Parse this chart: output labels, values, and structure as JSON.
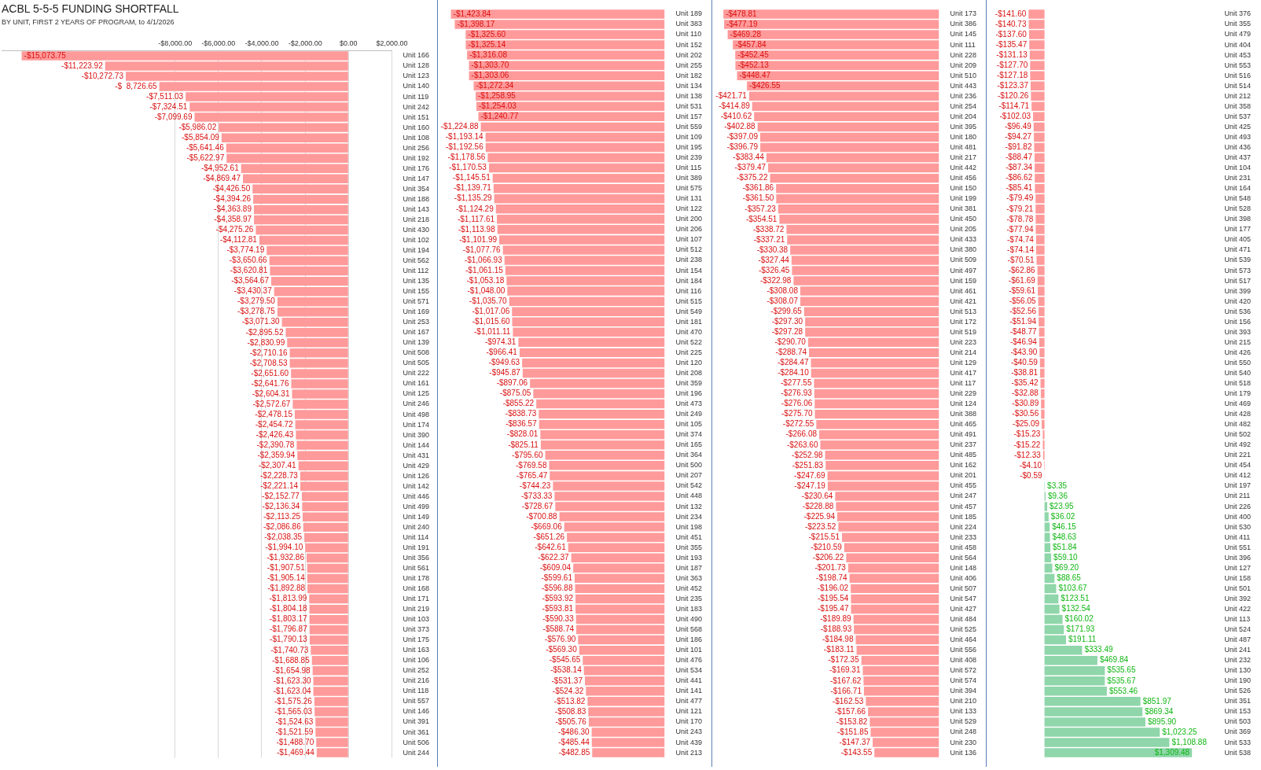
{
  "chart_data": [
    {
      "type": "bar",
      "orientation": "horizontal",
      "title": "ACBL 5-5-5 FUNDING SHORTFALL",
      "subtitle": "BY UNIT, FIRST 2 YEARS OF PROGRAM, to 4/1/2026",
      "xlim": [
        -16000,
        2000
      ],
      "xticks": [
        {
          "value": -8000,
          "label": "-$8,000.00"
        },
        {
          "value": -6000,
          "label": "-$6,000.00"
        },
        {
          "value": -4000,
          "label": "-$4,000.00"
        },
        {
          "value": -2000,
          "label": "-$2,000.00"
        },
        {
          "value": 0,
          "label": "$0.00"
        },
        {
          "value": 2000,
          "label": "$2,000.00"
        }
      ],
      "grid": "x",
      "color": "#ff9a9a",
      "categories": [
        "Unit 166",
        "Unit 128",
        "Unit 123",
        "Unit 140",
        "Unit 119",
        "Unit 242",
        "Unit 151",
        "Unit 160",
        "Unit 108",
        "Unit 256",
        "Unit 192",
        "Unit 176",
        "Unit 147",
        "Unit 354",
        "Unit 188",
        "Unit 143",
        "Unit 218",
        "Unit 430",
        "Unit 102",
        "Unit 194",
        "Unit 562",
        "Unit 112",
        "Unit 135",
        "Unit 155",
        "Unit 571",
        "Unit 169",
        "Unit 253",
        "Unit 167",
        "Unit 139",
        "Unit 508",
        "Unit 505",
        "Unit 222",
        "Unit 161",
        "Unit 125",
        "Unit 246",
        "Unit 498",
        "Unit 174",
        "Unit 390",
        "Unit 144",
        "Unit 431",
        "Unit 429",
        "Unit 126",
        "Unit 142",
        "Unit 446",
        "Unit 499",
        "Unit 149",
        "Unit 240",
        "Unit 114",
        "Unit 191",
        "Unit 356",
        "Unit 561",
        "Unit 178",
        "Unit 168",
        "Unit 171",
        "Unit 219",
        "Unit 103",
        "Unit 373",
        "Unit 175",
        "Unit 163",
        "Unit 106",
        "Unit 252",
        "Unit 216",
        "Unit 118",
        "Unit 557",
        "Unit 146",
        "Unit 391",
        "Unit 361",
        "Unit 506",
        "Unit 244"
      ],
      "values": [
        -15073.75,
        -11223.92,
        -10272.73,
        -8726.65,
        -7511.03,
        -7324.51,
        -7099.69,
        -5986.02,
        -5854.09,
        -5641.46,
        -5622.97,
        -4952.61,
        -4869.47,
        -4426.5,
        -4394.26,
        -4363.89,
        -4358.97,
        -4275.26,
        -4112.81,
        -3774.19,
        -3650.66,
        -3620.81,
        -3564.67,
        -3430.37,
        -3279.5,
        -3278.75,
        -3071.3,
        -2895.52,
        -2830.99,
        -2710.16,
        -2708.53,
        -2651.6,
        -2641.76,
        -2604.31,
        -2572.67,
        -2478.15,
        -2454.72,
        -2426.43,
        -2390.78,
        -2359.94,
        -2307.41,
        -2228.73,
        -2221.14,
        -2152.77,
        -2136.34,
        -2113.25,
        -2086.86,
        -2038.35,
        -1994.1,
        -1932.86,
        -1907.51,
        -1905.14,
        -1892.88,
        -1813.99,
        -1804.18,
        -1803.17,
        -1796.87,
        -1790.13,
        -1740.73,
        -1688.85,
        -1654.98,
        -1623.3,
        -1623.04,
        -1575.26,
        -1565.03,
        -1524.63,
        -1521.59,
        -1488.7,
        -1469.44
      ],
      "value_labels": [
        "-$15,073.75",
        "-$11,223.92",
        "-$10,272.73",
        "-$  8,726.65",
        "-$7,511.03",
        "-$7,324.51",
        "-$7,099.69",
        "-$5,986.02",
        "-$5,854.09",
        "-$5,641.46",
        "-$5,622.97",
        "-$4,952.61",
        "-$4,869.47",
        "-$4,426.50",
        "-$4,394.26",
        "-$4,363.89",
        "-$4,358.97",
        "-$4,275.26",
        "-$4,112.81",
        "-$3,774.19",
        "-$3,650.66",
        "-$3,620.81",
        "-$3,564.67",
        "-$3,430.37",
        "-$3,279.50",
        "-$3,278.75",
        "-$3,071.30",
        "-$2,895.52",
        "-$2,830.99",
        "-$2,710.16",
        "-$2,708.53",
        "-$2,651.60",
        "-$2,641.76",
        "-$2,604.31",
        "-$2,572.67",
        "-$2,478.15",
        "-$2,454.72",
        "-$2,426.43",
        "-$2,390.78",
        "-$2,359.94",
        "-$2,307.41",
        "-$2,228.73",
        "-$2,221.14",
        "-$2,152.77",
        "-$2,136.34",
        "-$2,113.25",
        "-$2,086.86",
        "-$2,038.35",
        "-$1,994.10",
        "-$1,932.86",
        "-$1,907.51",
        "-$1,905.14",
        "-$1,892.88",
        "-$1,813.99",
        "-$1,804.18",
        "-$1,803.17",
        "-$1,796.87",
        "-$1,790.13",
        "-$1,740.73",
        "-$1,688.85",
        "-$1,654.98",
        "-$1,623.30",
        "-$1,623.04",
        "-$1,575.26",
        "-$1,565.03",
        "-$1,524.63",
        "-$1,521.59",
        "-$1,488.70",
        "-$1,469.44"
      ]
    },
    {
      "type": "bar",
      "orientation": "horizontal",
      "tick_labels": "y",
      "color": "#ff9a9a",
      "categories": [
        "Unit 189",
        "Unit 383",
        "Unit 110",
        "Unit 152",
        "Unit 202",
        "Unit 255",
        "Unit 182",
        "Unit 134",
        "Unit 138",
        "Unit 531",
        "Unit 157",
        "Unit 559",
        "Unit 109",
        "Unit 195",
        "Unit 239",
        "Unit 115",
        "Unit 389",
        "Unit 575",
        "Unit 131",
        "Unit 122",
        "Unit 200",
        "Unit 206",
        "Unit 107",
        "Unit 512",
        "Unit 238",
        "Unit 154",
        "Unit 184",
        "Unit 116",
        "Unit 515",
        "Unit 549",
        "Unit 181",
        "Unit 470",
        "Unit 522",
        "Unit 225",
        "Unit 120",
        "Unit 208",
        "Unit 359",
        "Unit 196",
        "Unit 473",
        "Unit 249",
        "Unit 105",
        "Unit 374",
        "Unit 165",
        "Unit 364",
        "Unit 500",
        "Unit 207",
        "Unit 542",
        "Unit 448",
        "Unit 132",
        "Unit 234",
        "Unit 198",
        "Unit 451",
        "Unit 355",
        "Unit 193",
        "Unit 187",
        "Unit 363",
        "Unit 452",
        "Unit 235",
        "Unit 183",
        "Unit 490",
        "Unit 568",
        "Unit 186",
        "Unit 101",
        "Unit 476",
        "Unit 534",
        "Unit 441",
        "Unit 141",
        "Unit 477",
        "Unit 121",
        "Unit 170",
        "Unit 243",
        "Unit 439",
        "Unit 213"
      ],
      "values": [
        -1423.84,
        -1398.17,
        -1325.6,
        -1325.14,
        -1316.08,
        -1303.7,
        -1303.06,
        -1272.34,
        -1258.95,
        -1254.03,
        -1240.77,
        -1224.88,
        -1193.14,
        -1192.56,
        -1178.56,
        -1170.53,
        -1145.51,
        -1139.71,
        -1135.29,
        -1124.29,
        -1117.61,
        -1113.98,
        -1101.99,
        -1077.76,
        -1066.93,
        -1061.15,
        -1053.18,
        -1048.0,
        -1035.7,
        -1017.06,
        -1015.6,
        -1011.11,
        -974.31,
        -966.41,
        -949.63,
        -945.87,
        -897.06,
        -875.05,
        -855.22,
        -838.73,
        -836.57,
        -828.01,
        -825.11,
        -795.6,
        -769.58,
        -765.47,
        -744.23,
        -733.33,
        -728.67,
        -700.88,
        -669.06,
        -651.26,
        -642.61,
        -622.37,
        -609.04,
        -599.61,
        -596.88,
        -593.92,
        -593.81,
        -590.33,
        -588.74,
        -576.9,
        -569.3,
        -545.65,
        -538.14,
        -531.37,
        -524.32,
        -513.82,
        -508.83,
        -505.76,
        -486.3,
        -485.44,
        -482.85
      ],
      "value_labels": [
        "-$1,423.84",
        "-$1,398.17",
        "-$1,325.60",
        "-$1,325.14",
        "-$1,316.08",
        "-$1,303.70",
        "-$1,303.06",
        "-$1,272.34",
        "-$1,258.95",
        "-$1,254.03",
        "-$1,240.77",
        "-$1,224.88",
        "-$1,193.14",
        "-$1,192.56",
        "-$1,178.56",
        "-$1,170.53",
        "-$1,145.51",
        "-$1,139.71",
        "-$1,135.29",
        "-$1,124.29",
        "-$1,117.61",
        "-$1,113.98",
        "-$1,101.99",
        "-$1,077.76",
        "-$1,066.93",
        "-$1,061.15",
        "-$1,053.18",
        "-$1,048.00",
        "-$1,035.70",
        "-$1,017.06",
        "-$1,015.60",
        "-$1,011.11",
        "-$974.31",
        "-$966.41",
        "-$949.63",
        "-$945.87",
        "-$897.06",
        "-$875.05",
        "-$855.22",
        "-$838.73",
        "-$836.57",
        "-$828.01",
        "-$825.11",
        "-$795.60",
        "-$769.58",
        "-$765.47",
        "-$744.23",
        "-$733.33",
        "-$728.67",
        "-$700.88",
        "-$669.06",
        "-$651.26",
        "-$642.61",
        "-$622.37",
        "-$609.04",
        "-$599.61",
        "-$596.88",
        "-$593.92",
        "-$593.81",
        "-$590.33",
        "-$588.74",
        "-$576.90",
        "-$569.30",
        "-$545.65",
        "-$538.14",
        "-$531.37",
        "-$524.32",
        "-$513.82",
        "-$508.83",
        "-$505.76",
        "-$486.30",
        "-$485.44",
        "-$482.85"
      ]
    },
    {
      "type": "bar",
      "orientation": "horizontal",
      "tick_labels": "y",
      "color": "#ff9a9a",
      "categories": [
        "Unit 173",
        "Unit 386",
        "Unit 145",
        "Unit 111",
        "Unit 228",
        "Unit 209",
        "Unit 510",
        "Unit 443",
        "Unit 236",
        "Unit 254",
        "Unit 204",
        "Unit 395",
        "Unit 180",
        "Unit 481",
        "Unit 217",
        "Unit 442",
        "Unit 456",
        "Unit 150",
        "Unit 199",
        "Unit 381",
        "Unit 450",
        "Unit 205",
        "Unit 433",
        "Unit 380",
        "Unit 509",
        "Unit 497",
        "Unit 159",
        "Unit 461",
        "Unit 421",
        "Unit 513",
        "Unit 172",
        "Unit 519",
        "Unit 223",
        "Unit 214",
        "Unit 129",
        "Unit 417",
        "Unit 117",
        "Unit 229",
        "Unit 124",
        "Unit 388",
        "Unit 465",
        "Unit 491",
        "Unit 237",
        "Unit 485",
        "Unit 162",
        "Unit 201",
        "Unit 455",
        "Unit 247",
        "Unit 457",
        "Unit 185",
        "Unit 224",
        "Unit 233",
        "Unit 458",
        "Unit 564",
        "Unit 148",
        "Unit 406",
        "Unit 507",
        "Unit 547",
        "Unit 427",
        "Unit 484",
        "Unit 525",
        "Unit 464",
        "Unit 556",
        "Unit 408",
        "Unit 572",
        "Unit 574",
        "Unit 394",
        "Unit 210",
        "Unit 133",
        "Unit 529",
        "Unit 248",
        "Unit 230",
        "Unit 136"
      ],
      "values": [
        -478.81,
        -477.19,
        -469.28,
        -457.84,
        -452.45,
        -452.13,
        -448.47,
        -426.55,
        -421.71,
        -414.89,
        -410.62,
        -402.88,
        -397.09,
        -396.79,
        -383.44,
        -379.47,
        -375.22,
        -361.86,
        -361.5,
        -357.23,
        -354.51,
        -338.72,
        -337.21,
        -330.38,
        -327.44,
        -326.45,
        -322.98,
        -308.08,
        -308.07,
        -299.65,
        -297.3,
        -297.28,
        -290.7,
        -288.74,
        -284.47,
        -284.1,
        -277.55,
        -276.93,
        -276.06,
        -275.7,
        -272.55,
        -266.08,
        -263.6,
        -252.98,
        -251.83,
        -247.69,
        -247.19,
        -230.64,
        -228.88,
        -225.94,
        -223.52,
        -215.51,
        -210.59,
        -206.22,
        -201.73,
        -198.74,
        -196.02,
        -195.54,
        -195.47,
        -189.89,
        -188.93,
        -184.98,
        -183.11,
        -172.35,
        -169.31,
        -167.62,
        -166.71,
        -162.53,
        -157.66,
        -153.82,
        -151.85,
        -147.37,
        -143.55
      ],
      "value_labels": [
        "-$478.81",
        "-$477.19",
        "-$469.28",
        "-$457.84",
        "-$452.45",
        "-$452.13",
        "-$448.47",
        "-$426.55",
        "-$421.71",
        "-$414.89",
        "-$410.62",
        "-$402.88",
        "-$397.09",
        "-$396.79",
        "-$383.44",
        "-$379.47",
        "-$375.22",
        "-$361.86",
        "-$361.50",
        "-$357.23",
        "-$354.51",
        "-$338.72",
        "-$337.21",
        "-$330.38",
        "-$327.44",
        "-$326.45",
        "-$322.98",
        "-$308.08",
        "-$308.07",
        "-$299.65",
        "-$297.30",
        "-$297.28",
        "-$290.70",
        "-$288.74",
        "-$284.47",
        "-$284.10",
        "-$277.55",
        "-$276.93",
        "-$276.06",
        "-$275.70",
        "-$272.55",
        "-$266.08",
        "-$263.60",
        "-$252.98",
        "-$251.83",
        "-$247.69",
        "-$247.19",
        "-$230.64",
        "-$228.88",
        "-$225.94",
        "-$223.52",
        "-$215.51",
        "-$210.59",
        "-$206.22",
        "-$201.73",
        "-$198.74",
        "-$196.02",
        "-$195.54",
        "-$195.47",
        "-$189.89",
        "-$188.93",
        "-$184.98",
        "-$183.11",
        "-$172.35",
        "-$169.31",
        "-$167.62",
        "-$166.71",
        "-$162.53",
        "-$157.66",
        "-$153.82",
        "-$151.85",
        "-$147.37",
        "-$143.55"
      ]
    },
    {
      "type": "bar",
      "orientation": "horizontal",
      "tick_labels": "y",
      "categories": [
        "Unit 376",
        "Unit 355",
        "Unit 479",
        "Unit 404",
        "Unit 453",
        "Unit 553",
        "Unit 516",
        "Unit 514",
        "Unit 212",
        "Unit 358",
        "Unit 537",
        "Unit 425",
        "Unit 493",
        "Unit 436",
        "Unit 437",
        "Unit 104",
        "Unit 231",
        "Unit 164",
        "Unit 548",
        "Unit 528",
        "Unit 398",
        "Unit 177",
        "Unit 405",
        "Unit 471",
        "Unit 539",
        "Unit 573",
        "Unit 517",
        "Unit 399",
        "Unit 420",
        "Unit 536",
        "Unit 156",
        "Unit 393",
        "Unit 215",
        "Unit 426",
        "Unit 550",
        "Unit 540",
        "Unit 518",
        "Unit 179",
        "Unit 469",
        "Unit 428",
        "Unit 482",
        "Unit 502",
        "Unit 492",
        "Unit 221",
        "Unit 454",
        "Unit 412",
        "Unit 197",
        "Unit 211",
        "Unit 226",
        "Unit 400",
        "Unit 530",
        "Unit 411",
        "Unit 551",
        "Unit 396",
        "Unit 127",
        "Unit 158",
        "Unit 501",
        "Unit 392",
        "Unit 422",
        "Unit 113",
        "Unit 524",
        "Unit 487",
        "Unit 241",
        "Unit 232",
        "Unit 130",
        "Unit 190",
        "Unit 526",
        "Unit 351",
        "Unit 153",
        "Unit 503",
        "Unit 369",
        "Unit 533",
        "Unit 538"
      ],
      "values": [
        -141.6,
        -140.73,
        -137.6,
        -135.47,
        -131.13,
        -127.7,
        -127.18,
        -123.37,
        -120.26,
        -114.71,
        -102.03,
        -96.49,
        -94.27,
        -91.82,
        -88.47,
        -87.34,
        -86.62,
        -85.41,
        -79.49,
        -79.21,
        -78.78,
        -77.94,
        -74.74,
        -74.14,
        -70.51,
        -62.86,
        -61.69,
        -59.61,
        -56.05,
        -52.56,
        -51.94,
        -48.77,
        -46.94,
        -43.9,
        -40.59,
        -38.81,
        -35.42,
        -32.88,
        -30.89,
        -30.56,
        -25.09,
        -15.23,
        -15.22,
        -12.33,
        -4.1,
        -0.59,
        3.35,
        9.36,
        23.95,
        36.02,
        46.15,
        48.63,
        51.84,
        59.1,
        69.2,
        88.65,
        103.67,
        123.51,
        132.54,
        160.02,
        171.93,
        191.11,
        333.49,
        469.84,
        535.65,
        535.67,
        553.46,
        851.97,
        869.34,
        895.9,
        1023.25,
        1108.88,
        1309.48
      ],
      "value_labels": [
        "-$141.60",
        "-$140.73",
        "-$137.60",
        "-$135.47",
        "-$131.13",
        "-$127.70",
        "-$127.18",
        "-$123.37",
        "-$120.26",
        "-$114.71",
        "-$102.03",
        "-$96.49",
        "-$94.27",
        "-$91.82",
        "-$88.47",
        "-$87.34",
        "-$86.62",
        "-$85.41",
        "-$79.49",
        "-$79.21",
        "-$78.78",
        "-$77.94",
        "-$74.74",
        "-$74.14",
        "-$70.51",
        "-$62.86",
        "-$61.69",
        "-$59.61",
        "-$56.05",
        "-$52.56",
        "-$51.94",
        "-$48.77",
        "-$46.94",
        "-$43.90",
        "-$40.59",
        "-$38.81",
        "-$35.42",
        "-$32.88",
        "-$30.89",
        "-$30.56",
        "-$25.09",
        "-$15.23",
        "-$15.22",
        "-$12.33",
        "-$4.10",
        "-$0.59",
        "$3.35",
        "$9.36",
        "$23.95",
        "$36.02",
        "$46.15",
        "$48.63",
        "$51.84",
        "$59.10",
        "$69.20",
        "$88.65",
        "$103.67",
        "$123.51",
        "$132.54",
        "$160.02",
        "$171.93",
        "$191.11",
        "$333.49",
        "$469.84",
        "$535.65",
        "$535.67",
        "$553.46",
        "$851.97",
        "$869.34",
        "$895.90",
        "$1,023.25",
        "$1,108.88",
        "$1,309.48"
      ],
      "colors": [
        "#ff9a9a",
        "#ff9a9a",
        "#ff9a9a",
        "#ff9a9a",
        "#ff9a9a",
        "#ff9a9a",
        "#ff9a9a",
        "#ff9a9a",
        "#ff9a9a",
        "#ff9a9a",
        "#ff9a9a",
        "#ff9a9a",
        "#ff9a9a",
        "#ff9a9a",
        "#ff9a9a",
        "#ff9a9a",
        "#ff9a9a",
        "#ff9a9a",
        "#ff9a9a",
        "#ff9a9a",
        "#ff9a9a",
        "#ff9a9a",
        "#ff9a9a",
        "#ff9a9a",
        "#ff9a9a",
        "#ff9a9a",
        "#ff9a9a",
        "#ff9a9a",
        "#ff9a9a",
        "#ff9a9a",
        "#ff9a9a",
        "#ff9a9a",
        "#ff9a9a",
        "#ff9a9a",
        "#ff9a9a",
        "#ff9a9a",
        "#ff9a9a",
        "#ff9a9a",
        "#ff9a9a",
        "#ff9a9a",
        "#ff9a9a",
        "#ff9a9a",
        "#ff9a9a",
        "#ff9a9a",
        "#ff9a9a",
        "#ff9a9a",
        "#8fd6aa",
        "#8fd6aa",
        "#8fd6aa",
        "#8fd6aa",
        "#8fd6aa",
        "#8fd6aa",
        "#8fd6aa",
        "#8fd6aa",
        "#8fd6aa",
        "#8fd6aa",
        "#8fd6aa",
        "#8fd6aa",
        "#8fd6aa",
        "#8fd6aa",
        "#8fd6aa",
        "#8fd6aa",
        "#8fd6aa",
        "#8fd6aa",
        "#8fd6aa",
        "#8fd6aa",
        "#8fd6aa",
        "#8fd6aa",
        "#8fd6aa",
        "#8fd6aa",
        "#8fd6aa",
        "#8fd6aa",
        "#8fd6aa"
      ]
    }
  ]
}
